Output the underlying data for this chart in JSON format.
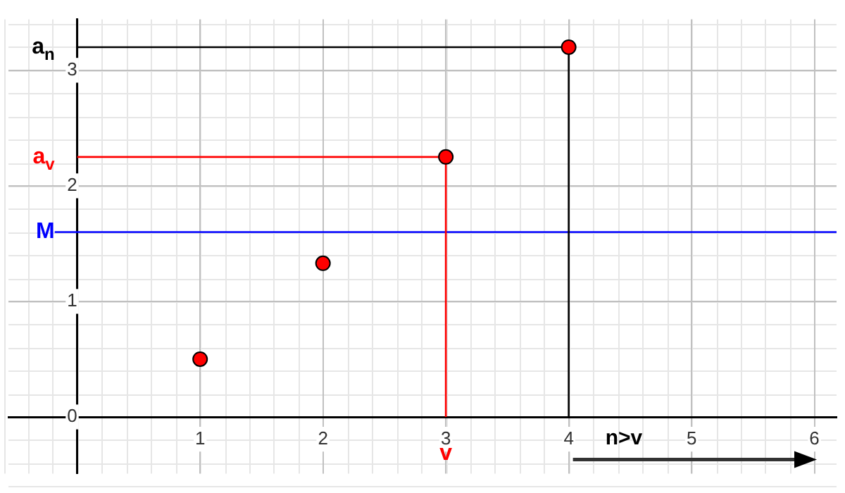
{
  "chart_data": {
    "type": "scatter",
    "x": [
      1,
      2,
      3,
      4
    ],
    "series": [
      {
        "color": "#ff0000",
        "values": [
          0.5,
          1.33,
          2.25,
          3.2
        ]
      }
    ],
    "xlim": [
      -0.56,
      6.18
    ],
    "ylim": [
      -0.49,
      3.44
    ],
    "xticks": [
      1,
      2,
      3,
      4,
      5,
      6
    ],
    "yticks": [
      0,
      1,
      2,
      3
    ],
    "grid": true,
    "legend": false,
    "marker": "circle",
    "ref_lines": [
      {
        "axis": "y",
        "value": 1.6,
        "label": "M",
        "color": "#0000ff"
      },
      {
        "axis": "y",
        "value": 2.25,
        "label": "a$_{v}$",
        "color": "#ff0000"
      },
      {
        "axis": "y",
        "value": 3.2,
        "label": "a$_{n}$",
        "color": "#000000"
      },
      {
        "axis": "x",
        "value": 3,
        "label": "v",
        "color": "#ff0000"
      },
      {
        "axis": "x",
        "value": 4,
        "color": "#000000"
      }
    ],
    "annotations": [
      "n>v"
    ]
  }
}
